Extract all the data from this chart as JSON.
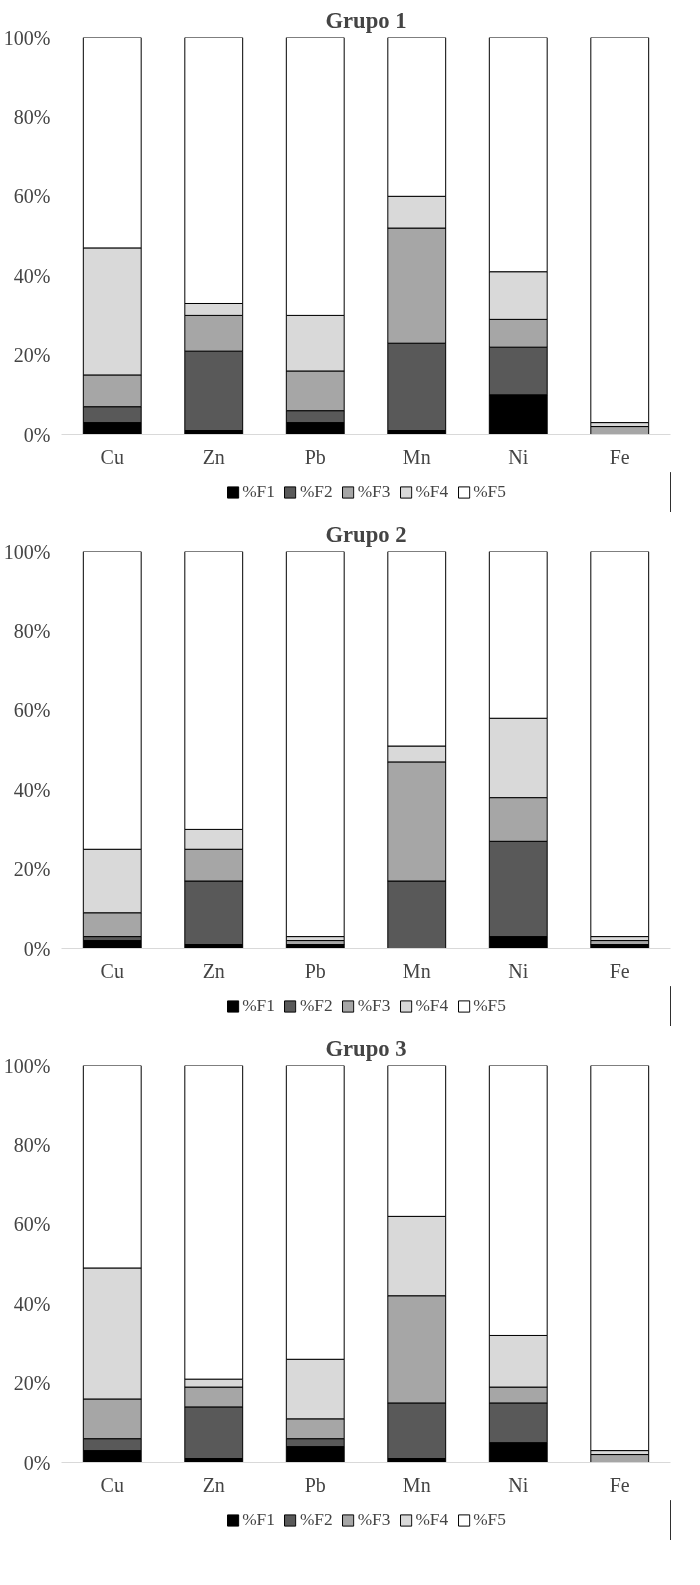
{
  "chart_data": [
    {
      "type": "bar",
      "stacked": true,
      "title": "Grupo 1",
      "categories": [
        "Cu",
        "Zn",
        "Pb",
        "Mn",
        "Ni",
        "Fe"
      ],
      "ylim": [
        0,
        100
      ],
      "yticks": [
        {
          "value": 0,
          "label": "0%"
        },
        {
          "value": 20,
          "label": "20%"
        },
        {
          "value": 40,
          "label": "40%"
        },
        {
          "value": 60,
          "label": "60%"
        },
        {
          "value": 80,
          "label": "80%"
        },
        {
          "value": 100,
          "label": "100%"
        }
      ],
      "legend": "bottom",
      "grid": false,
      "series": [
        {
          "name": "%F1",
          "color": "#000000",
          "values": [
            3,
            1,
            3,
            1,
            10,
            0
          ]
        },
        {
          "name": "%F2",
          "color": "#595959",
          "values": [
            4,
            20,
            3,
            22,
            12,
            0
          ]
        },
        {
          "name": "%F3",
          "color": "#a6a6a6",
          "values": [
            8,
            9,
            10,
            29,
            7,
            2
          ]
        },
        {
          "name": "%F4",
          "color": "#d9d9d9",
          "values": [
            32,
            3,
            14,
            8,
            12,
            1
          ]
        },
        {
          "name": "%F5",
          "color": "#ffffff",
          "values": [
            53,
            67,
            70,
            40,
            59,
            97
          ]
        }
      ]
    },
    {
      "type": "bar",
      "stacked": true,
      "title": "Grupo 2",
      "categories": [
        "Cu",
        "Zn",
        "Pb",
        "Mn",
        "Ni",
        "Fe"
      ],
      "ylim": [
        0,
        100
      ],
      "yticks": [
        {
          "value": 0,
          "label": "0%"
        },
        {
          "value": 20,
          "label": "20%"
        },
        {
          "value": 40,
          "label": "40%"
        },
        {
          "value": 60,
          "label": "60%"
        },
        {
          "value": 80,
          "label": "80%"
        },
        {
          "value": 100,
          "label": "100%"
        }
      ],
      "legend": "bottom",
      "grid": false,
      "series": [
        {
          "name": "%F1",
          "color": "#000000",
          "values": [
            2,
            1,
            1,
            0,
            3,
            1
          ]
        },
        {
          "name": "%F2",
          "color": "#595959",
          "values": [
            1,
            16,
            0,
            17,
            24,
            0
          ]
        },
        {
          "name": "%F3",
          "color": "#a6a6a6",
          "values": [
            6,
            8,
            1,
            30,
            11,
            1
          ]
        },
        {
          "name": "%F4",
          "color": "#d9d9d9",
          "values": [
            16,
            5,
            1,
            4,
            20,
            1
          ]
        },
        {
          "name": "%F5",
          "color": "#ffffff",
          "values": [
            75,
            70,
            97,
            49,
            42,
            97
          ]
        }
      ]
    },
    {
      "type": "bar",
      "stacked": true,
      "title": "Grupo 3",
      "categories": [
        "Cu",
        "Zn",
        "Pb",
        "Mn",
        "Ni",
        "Fe"
      ],
      "ylim": [
        0,
        100
      ],
      "yticks": [
        {
          "value": 0,
          "label": "0%"
        },
        {
          "value": 20,
          "label": "20%"
        },
        {
          "value": 40,
          "label": "40%"
        },
        {
          "value": 60,
          "label": "60%"
        },
        {
          "value": 80,
          "label": "80%"
        },
        {
          "value": 100,
          "label": "100%"
        }
      ],
      "legend": "bottom",
      "grid": false,
      "series": [
        {
          "name": "%F1",
          "color": "#000000",
          "values": [
            3,
            1,
            4,
            1,
            5,
            0
          ]
        },
        {
          "name": "%F2",
          "color": "#595959",
          "values": [
            3,
            13,
            2,
            14,
            10,
            0
          ]
        },
        {
          "name": "%F3",
          "color": "#a6a6a6",
          "values": [
            10,
            5,
            5,
            27,
            4,
            2
          ]
        },
        {
          "name": "%F4",
          "color": "#d9d9d9",
          "values": [
            33,
            2,
            15,
            20,
            13,
            1
          ]
        },
        {
          "name": "%F5",
          "color": "#ffffff",
          "values": [
            51,
            79,
            74,
            38,
            68,
            97
          ]
        }
      ]
    }
  ]
}
